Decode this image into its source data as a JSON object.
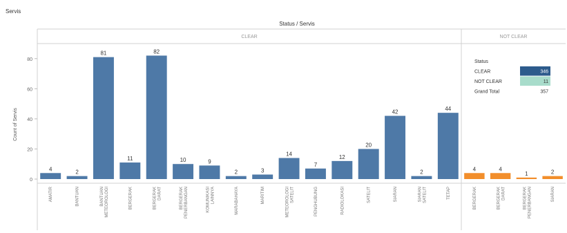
{
  "sheet_title": "Servis",
  "chart_data": {
    "type": "bar",
    "title": "Status / Servis",
    "ylabel": "Count of Servis",
    "ylim": [
      0,
      90
    ],
    "yticks": [
      0,
      20,
      40,
      60,
      80
    ],
    "grid": false,
    "colors": {
      "CLEAR": "#4e79a7",
      "NOT CLEAR": "#f28e2b"
    },
    "panels": [
      {
        "name": "CLEAR",
        "color": "#4e79a7",
        "categories": [
          "AMATIR",
          "BANTUAN",
          "BANTUAN METEOROLOGI",
          "BERGERAK",
          "BERGERAK DARAT",
          "BERGERAK PENERBANGAN",
          "KOMUNIKASI LAINNYA",
          "MARABAHAYA",
          "MARITIM",
          "METEOROLOGI SATELIT",
          "PENGHUBUNG",
          "RADIOLOKASI",
          "SATELIT",
          "SIARAN",
          "SIARAN SATELIT",
          "TETAP"
        ],
        "values": [
          4,
          2,
          81,
          11,
          82,
          10,
          9,
          2,
          3,
          14,
          7,
          12,
          20,
          42,
          2,
          44
        ]
      },
      {
        "name": "NOT CLEAR",
        "color": "#f28e2b",
        "categories": [
          "BERGERAK",
          "BERGERAK DARAT",
          "BERGERAK PENERBANGAN",
          "SIARAN"
        ],
        "values": [
          4,
          4,
          1,
          2
        ]
      }
    ]
  },
  "legend_table": {
    "header": "Status",
    "rows": [
      {
        "label": "CLEAR",
        "value": "346",
        "bg": "#2d5b8c",
        "fg": "#ffffff"
      },
      {
        "label": "NOT CLEAR",
        "value": "11",
        "bg": "#a8dccb",
        "fg": "#333333"
      },
      {
        "label": "Grand Total",
        "value": "357",
        "bg": "#ffffff",
        "fg": "#333333"
      }
    ]
  }
}
